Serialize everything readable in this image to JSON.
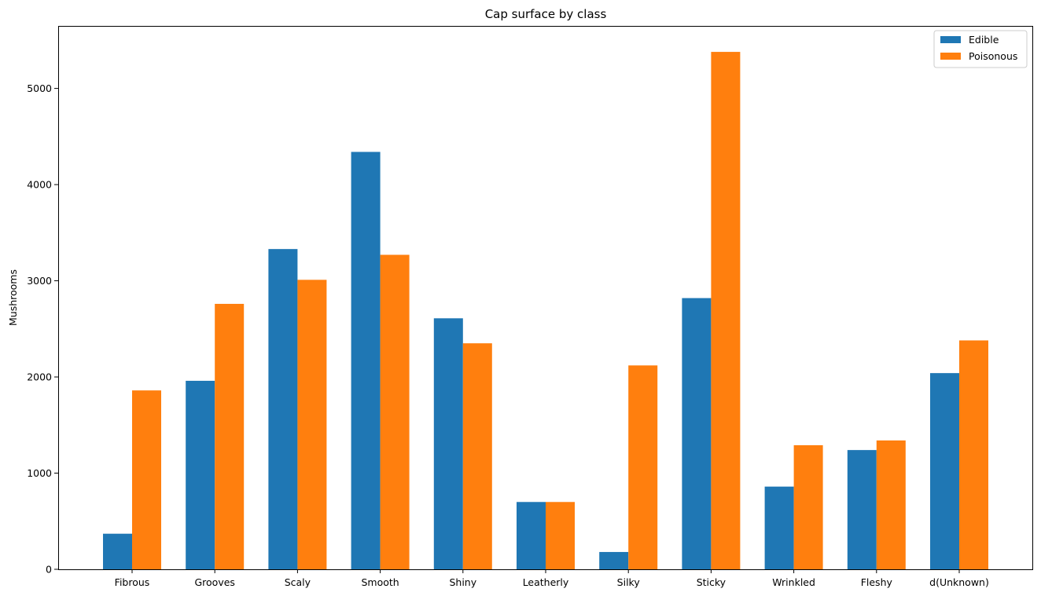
{
  "chart_data": {
    "type": "bar",
    "title": "Cap surface by class",
    "xlabel": "",
    "ylabel": "Mushrooms",
    "categories": [
      "Fibrous",
      "Grooves",
      "Scaly",
      "Smooth",
      "Shiny",
      "Leatherly",
      "Silky",
      "Sticky",
      "Wrinkled",
      "Fleshy",
      "d(Unknown)"
    ],
    "series": [
      {
        "name": "Edible",
        "color": "#1f77b4",
        "values": [
          370,
          1960,
          3330,
          4340,
          2610,
          700,
          180,
          2820,
          860,
          1240,
          2040
        ]
      },
      {
        "name": "Poisonous",
        "color": "#ff7f0e",
        "values": [
          1860,
          2760,
          3010,
          3270,
          2350,
          700,
          2120,
          5380,
          1290,
          1340,
          2380
        ]
      }
    ],
    "ylim": [
      0,
      5650
    ],
    "yticks": [
      0,
      1000,
      2000,
      3000,
      4000,
      5000
    ],
    "grid": false,
    "legend_position": "top-right"
  }
}
